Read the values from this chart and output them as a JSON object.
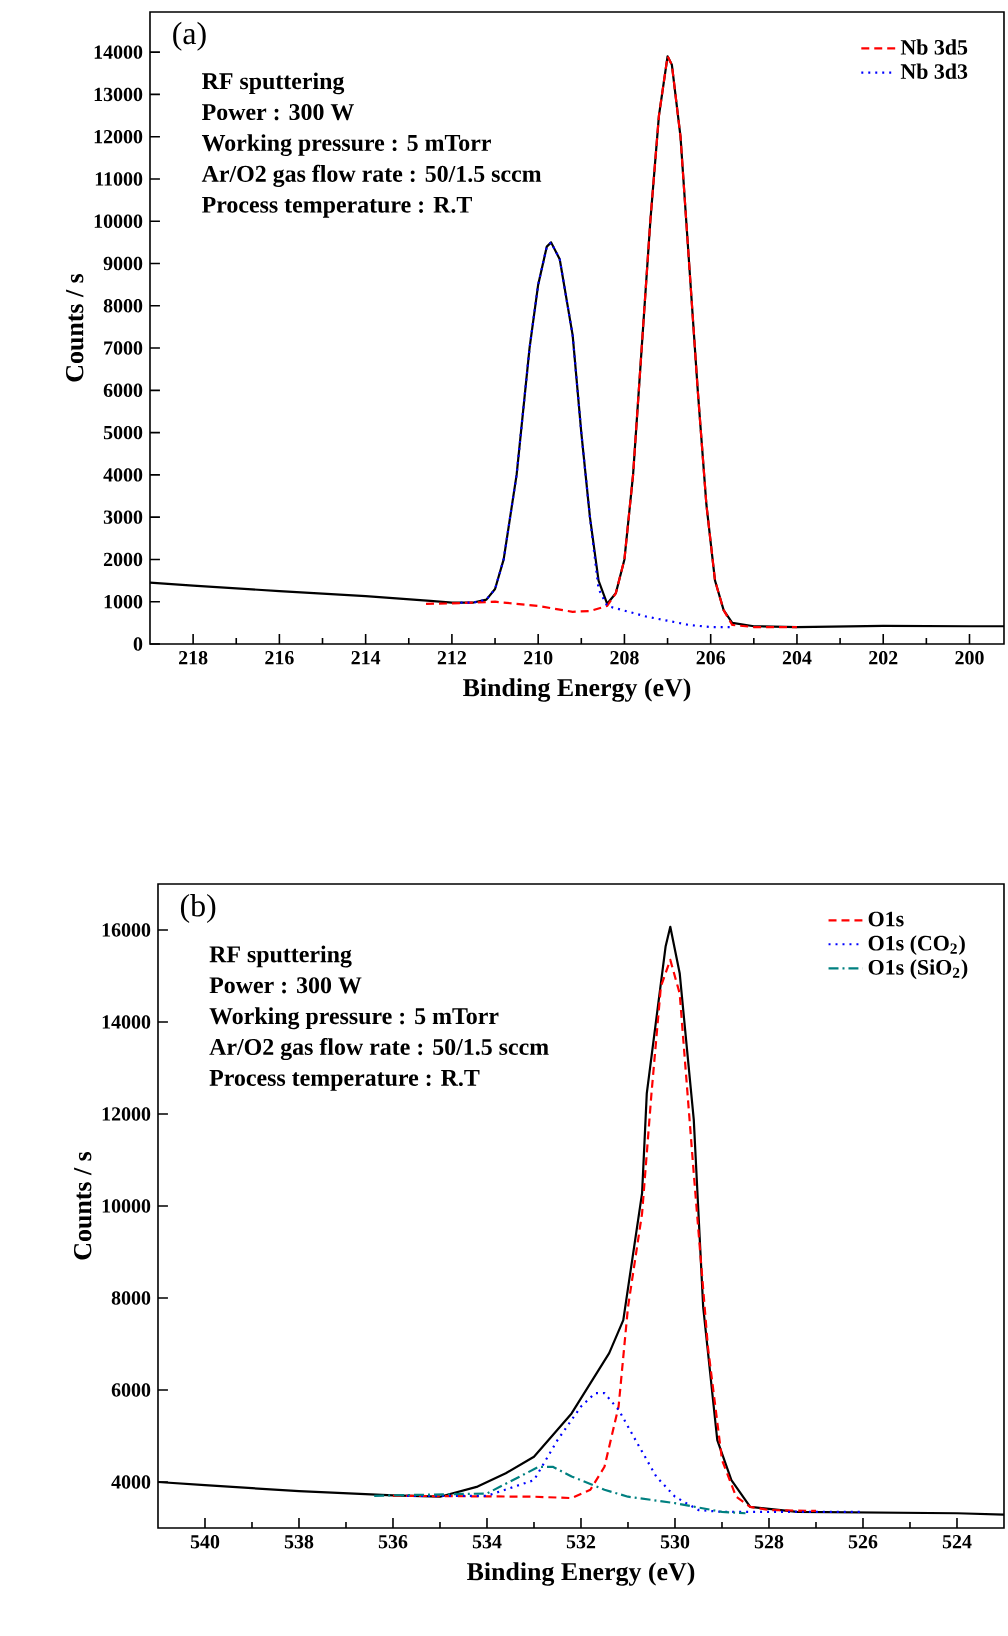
{
  "chart_data": [
    {
      "type": "line",
      "xlabel": "Binding Energy (eV)",
      "ylabel": "Counts / s",
      "xlim": [
        219,
        199.2
      ],
      "xticks": [
        218,
        216,
        214,
        212,
        210,
        208,
        206,
        204,
        202,
        200
      ],
      "ylim": [
        0,
        14950
      ],
      "yticks": [
        0,
        1000,
        2000,
        3000,
        4000,
        5000,
        6000,
        7000,
        8000,
        9000,
        10000,
        11000,
        12000,
        13000,
        14000
      ],
      "legend": "top right",
      "annotations": [
        "(a)",
        "RF sputtering",
        "Power : 300 W",
        "Working pressure : 5 mTorr",
        "Ar/O2 gas flow rate : 50/1.5 sccm",
        "Process temperature : R.T"
      ],
      "series": [
        {
          "color": "#000000",
          "line_style": "solid",
          "x": [
            219,
            218,
            216,
            214,
            212.5,
            212,
            211.5,
            211.2,
            211,
            210.8,
            210.5,
            210.2,
            210,
            209.8,
            209.7,
            209.5,
            209.2,
            209,
            208.8,
            208.6,
            208.4,
            208.2,
            208,
            207.8,
            207.6,
            207.4,
            207.2,
            207,
            206.9,
            206.7,
            206.5,
            206.3,
            206.1,
            205.9,
            205.7,
            205.5,
            205,
            204,
            202,
            200,
            199.2
          ],
          "values": [
            1450,
            1380,
            1250,
            1130,
            1020,
            980,
            980,
            1050,
            1300,
            2000,
            4000,
            7000,
            8500,
            9400,
            9500,
            9100,
            7300,
            5000,
            3000,
            1500,
            950,
            1200,
            2000,
            4000,
            7000,
            10000,
            12500,
            13900,
            13700,
            12000,
            9000,
            6000,
            3300,
            1500,
            800,
            500,
            420,
            400,
            430,
            420,
            420
          ]
        },
        {
          "name": "Nb 3d5",
          "color": "#ff0000",
          "line_style": "dashed",
          "x": [
            212.6,
            212,
            211,
            210,
            209.2,
            208.8,
            208.4,
            208.2,
            208,
            207.8,
            207.6,
            207.4,
            207.2,
            207,
            206.9,
            206.7,
            206.5,
            206.3,
            206.1,
            205.9,
            205.7,
            205.5,
            205,
            204
          ],
          "values": [
            950,
            960,
            1000,
            900,
            760,
            780,
            900,
            1200,
            2000,
            4000,
            7000,
            10000,
            12500,
            13900,
            13700,
            12000,
            9000,
            6000,
            3300,
            1500,
            800,
            450,
            400,
            400
          ]
        },
        {
          "name": "Nb 3d3",
          "color": "#0000ff",
          "line_style": "dotted",
          "x": [
            211.8,
            211.5,
            211.2,
            211,
            210.8,
            210.5,
            210.2,
            210,
            209.8,
            209.7,
            209.5,
            209.2,
            209,
            208.8,
            208.6,
            208.4,
            207.5,
            206.5,
            206,
            205.5
          ],
          "values": [
            980,
            980,
            1050,
            1300,
            2000,
            4000,
            7000,
            8500,
            9400,
            9500,
            9100,
            7300,
            5000,
            3000,
            1300,
            900,
            650,
            450,
            400,
            400
          ]
        }
      ]
    },
    {
      "type": "line",
      "xlabel": "Binding Energy (eV)",
      "ylabel": "Counts / s",
      "xlim": [
        541,
        523
      ],
      "xticks": [
        540,
        538,
        536,
        534,
        532,
        530,
        528,
        526,
        524
      ],
      "ylim": [
        3000,
        17000
      ],
      "yticks": [
        4000,
        6000,
        8000,
        10000,
        12000,
        14000,
        16000
      ],
      "legend": "top right",
      "annotations": [
        "(b)",
        "RF sputtering",
        "Power : 300 W",
        "Working pressure : 5 mTorr",
        "Ar/O2 gas flow rate : 50/1.5 sccm",
        "Process temperature : R.T"
      ],
      "series": [
        {
          "color": "#000000",
          "line_style": "solid",
          "x": [
            541,
            540,
            538,
            536,
            535,
            534.2,
            533.6,
            533,
            532.2,
            531.4,
            531.1,
            530.7,
            530.6,
            530.2,
            530.1,
            529.9,
            529.6,
            529.4,
            529.1,
            528.8,
            528.4,
            527.4,
            524,
            523
          ],
          "values": [
            4000,
            3930,
            3800,
            3710,
            3680,
            3900,
            4190,
            4550,
            5490,
            6800,
            7520,
            10280,
            12450,
            15640,
            16070,
            15060,
            11870,
            7800,
            4910,
            4040,
            3460,
            3350,
            3320,
            3290
          ]
        },
        {
          "name": "O1s",
          "color": "#ff0000",
          "line_style": "dashed",
          "x": [
            536,
            533,
            532.2,
            531.8,
            531.5,
            531.2,
            531,
            530.7,
            530.5,
            530.3,
            530.1,
            529.9,
            529.6,
            529.3,
            529,
            528.7,
            528.4,
            528,
            527
          ],
          "values": [
            3700,
            3680,
            3650,
            3830,
            4330,
            5640,
            7800,
            9840,
            12450,
            14770,
            15350,
            14620,
            10700,
            6940,
            4480,
            3680,
            3460,
            3390,
            3370
          ]
        },
        {
          "name": "O1s (CO$_{2}$)",
          "color": "#0000ff",
          "line_style": "dotted",
          "x": [
            535.7,
            534,
            533,
            532.5,
            532,
            531.7,
            531.5,
            531.2,
            530.8,
            530.4,
            530,
            529.5,
            529,
            527,
            526
          ],
          "values": [
            3700,
            3700,
            4040,
            4910,
            5640,
            5930,
            5930,
            5570,
            4840,
            4120,
            3680,
            3390,
            3350,
            3350,
            3350
          ]
        },
        {
          "name": "O1s (SiO$_{2}$)",
          "color": "#008080",
          "line_style": "dashdot",
          "x": [
            536.4,
            534,
            533.3,
            532.9,
            532.6,
            532.2,
            531.5,
            531,
            530,
            529,
            528.5
          ],
          "values": [
            3700,
            3750,
            4120,
            4330,
            4330,
            4120,
            3830,
            3680,
            3540,
            3350,
            3320
          ]
        }
      ]
    }
  ]
}
